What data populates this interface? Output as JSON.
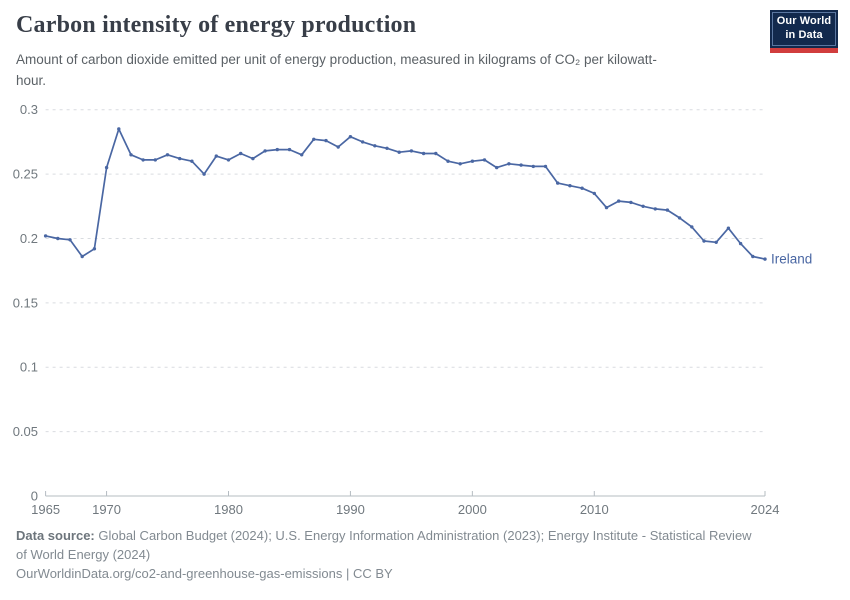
{
  "header": {
    "title": "Carbon intensity of energy production",
    "subtitle": "Amount of carbon dioxide emitted per unit of energy production, measured in kilograms of CO₂ per kilowatt-hour.",
    "logo": {
      "line1": "Our World",
      "line2": "in Data"
    }
  },
  "footer": {
    "source_label": "Data source:",
    "source_text": " Global Carbon Budget (2024); U.S. Energy Information Administration (2023); Energy Institute - Statistical Review of World Energy (2024)",
    "link_text": "OurWorldinData.org/co2-and-greenhouse-gas-emissions | CC BY"
  },
  "chart_data": {
    "type": "line",
    "title": "Carbon intensity of energy production",
    "entity_label": "Ireland",
    "xlabel": "",
    "ylabel": "kg CO₂ per kWh",
    "xlim": [
      1965,
      2024
    ],
    "ylim": [
      0,
      0.3
    ],
    "grid": "horizontal dashed",
    "legend_position": "end-of-line",
    "line_color": "#4a67a3",
    "xticks": [
      1965,
      1970,
      1980,
      1990,
      2000,
      2010,
      2024
    ],
    "xtick_labels": [
      "1965",
      "1970",
      "1980",
      "1990",
      "2000",
      "2010",
      "2024"
    ],
    "yticks": [
      0,
      0.05,
      0.1,
      0.15,
      0.2,
      0.25,
      0.3
    ],
    "ytick_labels": [
      "0",
      "0.05",
      "0.1",
      "0.15",
      "0.2",
      "0.25",
      "0.3"
    ],
    "x": [
      1965,
      1966,
      1967,
      1968,
      1969,
      1970,
      1971,
      1972,
      1973,
      1974,
      1975,
      1976,
      1977,
      1978,
      1979,
      1980,
      1981,
      1982,
      1983,
      1984,
      1985,
      1986,
      1987,
      1988,
      1989,
      1990,
      1991,
      1992,
      1993,
      1994,
      1995,
      1996,
      1997,
      1998,
      1999,
      2000,
      2001,
      2002,
      2003,
      2004,
      2005,
      2006,
      2007,
      2008,
      2009,
      2010,
      2011,
      2012,
      2013,
      2014,
      2015,
      2016,
      2017,
      2018,
      2019,
      2020,
      2021,
      2022,
      2023,
      2024
    ],
    "series": [
      {
        "name": "Ireland",
        "values": [
          0.202,
          0.2,
          0.199,
          0.186,
          0.192,
          0.255,
          0.285,
          0.265,
          0.261,
          0.261,
          0.265,
          0.262,
          0.26,
          0.25,
          0.264,
          0.261,
          0.266,
          0.262,
          0.268,
          0.269,
          0.269,
          0.265,
          0.277,
          0.276,
          0.271,
          0.279,
          0.275,
          0.272,
          0.27,
          0.267,
          0.268,
          0.266,
          0.266,
          0.26,
          0.258,
          0.26,
          0.261,
          0.255,
          0.258,
          0.257,
          0.256,
          0.256,
          0.243,
          0.241,
          0.239,
          0.235,
          0.224,
          0.229,
          0.228,
          0.225,
          0.223,
          0.222,
          0.216,
          0.209,
          0.198,
          0.197,
          0.208,
          0.196,
          0.186,
          0.184
        ]
      }
    ]
  },
  "colors": {
    "line": "#4a67a3",
    "title_text": "#383e48",
    "subtitle_text": "#5b6166",
    "axis_labels": "#70787e",
    "gridline": "#d9dce0",
    "axis_line": "#b5bcc2",
    "footer_text": "#828a91",
    "logo_navy": "#12294d",
    "logo_red": "#d13d3d",
    "background": "#ffffff"
  }
}
